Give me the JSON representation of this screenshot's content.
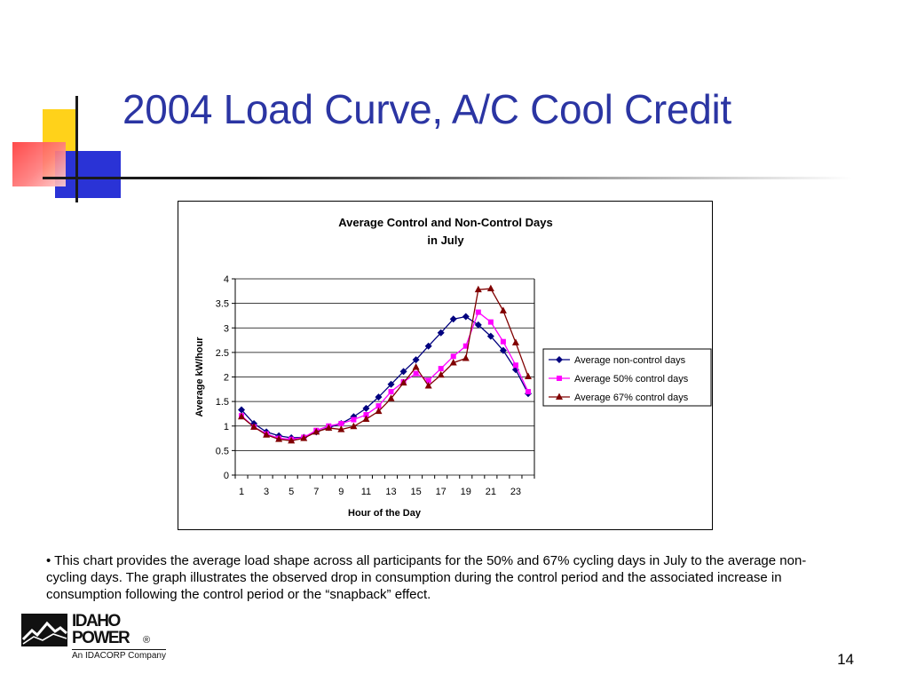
{
  "slide": {
    "title": "2004 Load Curve, A/C Cool Credit",
    "caption": "• This chart provides the average load shape across all participants for the 50% and 67% cycling days in July to the average non-cycling days.  The graph illustrates the observed drop in consumption during the control period and the associated increase in consumption following the control period or the “snapback” effect.",
    "page_number": "14",
    "logo": {
      "line1": "IDAHO",
      "line2": "POWER",
      "registered": "®",
      "tagline": "An IDACORP Company"
    },
    "accent_colors": {
      "title": "#2b35a3",
      "deco_yellow": "#ffd21a",
      "deco_blue": "#2a33d6",
      "deco_red": "#ff3a3a"
    }
  },
  "chart_data": {
    "type": "line",
    "title": "Average Control and Non-Control Days",
    "subtitle": "in July",
    "xlabel": "Hour of the Day",
    "ylabel": "Average kW/hour",
    "x": [
      1,
      2,
      3,
      4,
      5,
      6,
      7,
      8,
      9,
      10,
      11,
      12,
      13,
      14,
      15,
      16,
      17,
      18,
      19,
      20,
      21,
      22,
      23,
      24
    ],
    "x_tick_labels": [
      "1",
      "3",
      "5",
      "7",
      "9",
      "11",
      "13",
      "15",
      "17",
      "19",
      "21",
      "23"
    ],
    "x_tick_values": [
      1,
      3,
      5,
      7,
      9,
      11,
      13,
      15,
      17,
      19,
      21,
      23
    ],
    "y_tick_labels": [
      "0",
      "0.5",
      "1",
      "1.5",
      "2",
      "2.5",
      "3",
      "3.5",
      "4"
    ],
    "y_tick_values": [
      0,
      0.5,
      1,
      1.5,
      2,
      2.5,
      3,
      3.5,
      4
    ],
    "ylim": [
      0,
      4
    ],
    "grid": "horizontal",
    "legend_position": "right",
    "series": [
      {
        "name": "Average non-control days",
        "color": "#00007f",
        "marker": "diamond",
        "values": [
          1.33,
          1.05,
          0.88,
          0.8,
          0.76,
          0.77,
          0.88,
          0.97,
          1.05,
          1.19,
          1.36,
          1.59,
          1.85,
          2.11,
          2.35,
          2.63,
          2.9,
          3.18,
          3.23,
          3.06,
          2.83,
          2.54,
          2.15,
          1.66
        ]
      },
      {
        "name": "Average 50% control days",
        "color": "#ff00ff",
        "marker": "square",
        "values": [
          1.21,
          0.98,
          0.84,
          0.75,
          0.73,
          0.77,
          0.91,
          1.0,
          1.05,
          1.13,
          1.23,
          1.41,
          1.7,
          1.9,
          2.07,
          1.93,
          2.17,
          2.42,
          2.63,
          3.32,
          3.12,
          2.72,
          2.24,
          1.7
        ]
      },
      {
        "name": "Average 67% control days",
        "color": "#800000",
        "marker": "triangle",
        "values": [
          1.19,
          0.98,
          0.82,
          0.73,
          0.7,
          0.75,
          0.88,
          0.96,
          0.93,
          0.99,
          1.14,
          1.3,
          1.56,
          1.88,
          2.2,
          1.82,
          2.04,
          2.29,
          2.38,
          3.78,
          3.8,
          3.35,
          2.7,
          2.01
        ]
      }
    ]
  }
}
